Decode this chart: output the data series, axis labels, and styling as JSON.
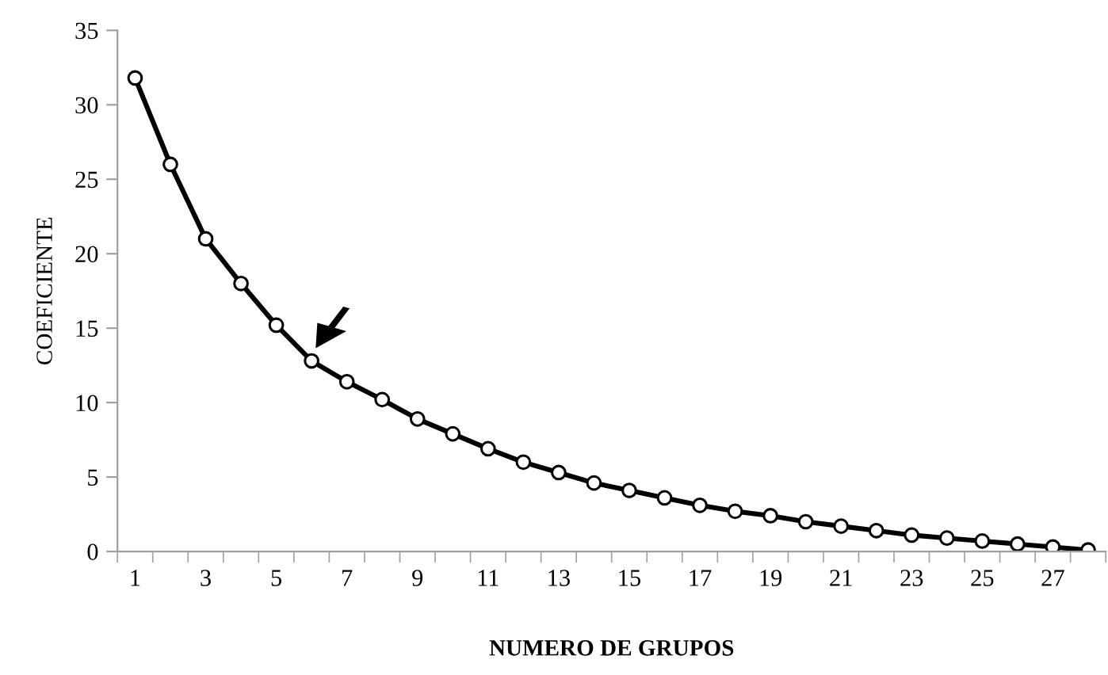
{
  "chart_data": {
    "type": "line",
    "xlabel": "NUMERO DE GRUPOS",
    "ylabel": "COEFICIENTE",
    "categories": [
      "1",
      null,
      "3",
      null,
      "5",
      null,
      "7",
      null,
      "9",
      null,
      "11",
      null,
      "13",
      null,
      "15",
      null,
      "17",
      null,
      "19",
      null,
      "21",
      null,
      "23",
      null,
      "25",
      null,
      "27",
      null
    ],
    "series": [
      {
        "color": "#000000",
        "values": [
          31.8,
          26.0,
          21.0,
          18.0,
          15.2,
          12.8,
          11.4,
          10.2,
          8.9,
          7.9,
          6.9,
          6.0,
          5.3,
          4.6,
          4.1,
          3.6,
          3.1,
          2.7,
          2.4,
          2.0,
          1.7,
          1.4,
          1.1,
          0.9,
          0.7,
          0.5,
          0.3,
          0.1
        ]
      }
    ],
    "ylim": [
      0,
      35
    ],
    "yticks": [
      0,
      5,
      10,
      15,
      20,
      25,
      30,
      35
    ],
    "grid": false,
    "legend": false,
    "marker": "circle",
    "line_style": "solid"
  }
}
